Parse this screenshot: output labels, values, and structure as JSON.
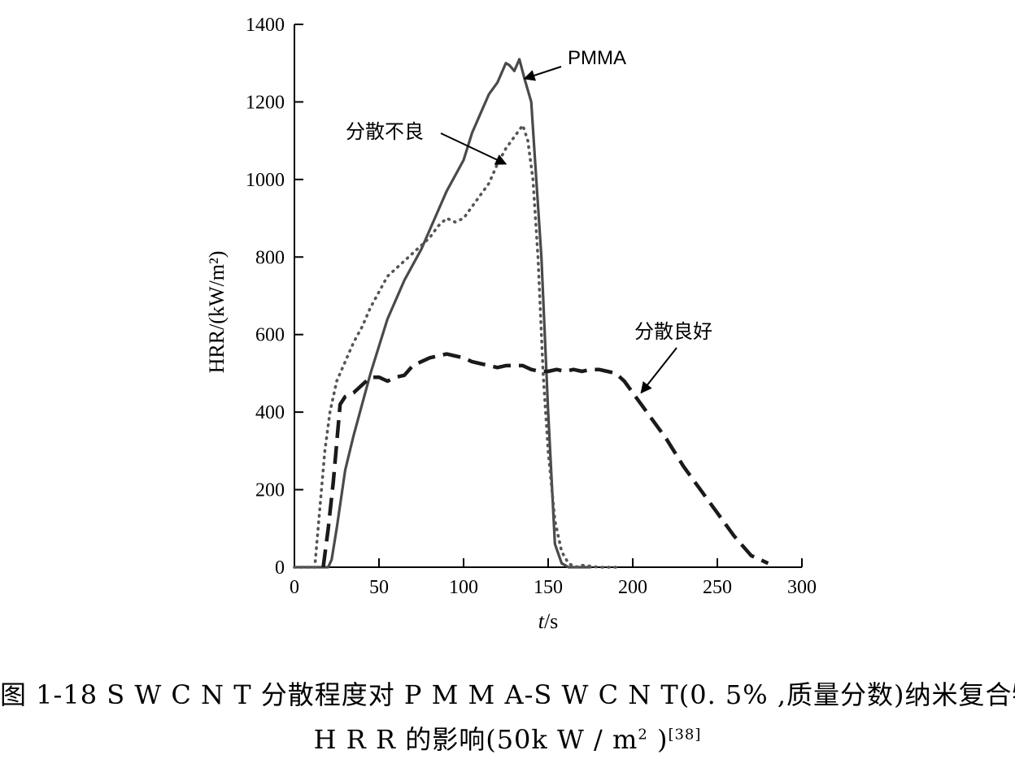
{
  "chart_data": {
    "type": "line",
    "xlabel_var": "t",
    "xlabel_unit": "/s",
    "ylabel": "HRR/(kW/m²)",
    "xlim": [
      0,
      300
    ],
    "ylim": [
      0,
      1400
    ],
    "x_ticks": [
      0,
      50,
      100,
      150,
      200,
      250,
      300
    ],
    "y_ticks": [
      0,
      200,
      400,
      600,
      800,
      1000,
      1200,
      1400
    ],
    "grid": false,
    "legend": "none",
    "series": [
      {
        "name": "PMMA",
        "style": "solid",
        "color": "#4a4a4a",
        "x": [
          0,
          20,
          22,
          25,
          30,
          35,
          40,
          45,
          50,
          55,
          60,
          65,
          70,
          75,
          80,
          85,
          90,
          95,
          100,
          105,
          110,
          115,
          120,
          125,
          127,
          130,
          133,
          136,
          140,
          143,
          146,
          150,
          154,
          158,
          162,
          166,
          170,
          175
        ],
        "y": [
          0,
          0,
          20,
          100,
          250,
          340,
          420,
          500,
          570,
          640,
          690,
          740,
          780,
          820,
          870,
          920,
          970,
          1010,
          1050,
          1120,
          1170,
          1220,
          1250,
          1300,
          1295,
          1280,
          1310,
          1260,
          1200,
          1000,
          800,
          400,
          60,
          10,
          0,
          0,
          0,
          0
        ]
      },
      {
        "name": "分散不良",
        "style": "dotted",
        "color": "#555555",
        "x": [
          0,
          12,
          15,
          18,
          21,
          25,
          30,
          35,
          40,
          45,
          50,
          55,
          60,
          65,
          70,
          75,
          80,
          85,
          90,
          95,
          100,
          105,
          110,
          115,
          120,
          125,
          130,
          135,
          138,
          141,
          144,
          147,
          150,
          154,
          158,
          162,
          166,
          170,
          180,
          190
        ],
        "y": [
          0,
          0,
          150,
          300,
          400,
          480,
          530,
          580,
          620,
          670,
          710,
          750,
          770,
          790,
          810,
          830,
          850,
          880,
          900,
          890,
          900,
          930,
          960,
          990,
          1040,
          1080,
          1110,
          1140,
          1100,
          1000,
          800,
          500,
          300,
          120,
          40,
          10,
          0,
          5,
          0,
          0
        ]
      },
      {
        "name": "分散良好",
        "style": "dashed",
        "color": "#1a1a1a",
        "x": [
          17,
          20,
          23,
          27,
          30,
          35,
          40,
          45,
          50,
          55,
          60,
          65,
          70,
          75,
          80,
          85,
          90,
          95,
          100,
          105,
          110,
          115,
          120,
          125,
          130,
          135,
          140,
          145,
          150,
          155,
          160,
          165,
          170,
          175,
          180,
          185,
          190,
          195,
          200,
          210,
          220,
          230,
          240,
          250,
          260,
          270,
          280
        ],
        "y": [
          0,
          100,
          220,
          420,
          440,
          450,
          470,
          490,
          490,
          480,
          490,
          495,
          520,
          530,
          540,
          545,
          550,
          545,
          540,
          530,
          525,
          520,
          515,
          520,
          520,
          520,
          510,
          505,
          505,
          510,
          505,
          510,
          505,
          510,
          510,
          505,
          500,
          480,
          450,
          390,
          330,
          260,
          200,
          140,
          80,
          30,
          10
        ]
      }
    ],
    "annotations": [
      {
        "text": "PMMA",
        "points_to": [
          136,
          1260
        ]
      },
      {
        "text": "分散不良",
        "points_to": [
          125,
          1040
        ]
      },
      {
        "text": "分散良好",
        "points_to": [
          205,
          450
        ]
      }
    ]
  },
  "caption": {
    "line1": "图 1-18  S W C N T 分散程度对 P M M A-S W C N T(0. 5% ,质量分数)纳米复合物",
    "line2_main": "H R R 的影响(50k W / m",
    "line2_sup": "2",
    "line2_close": " )",
    "line2_ref": "[38]"
  }
}
